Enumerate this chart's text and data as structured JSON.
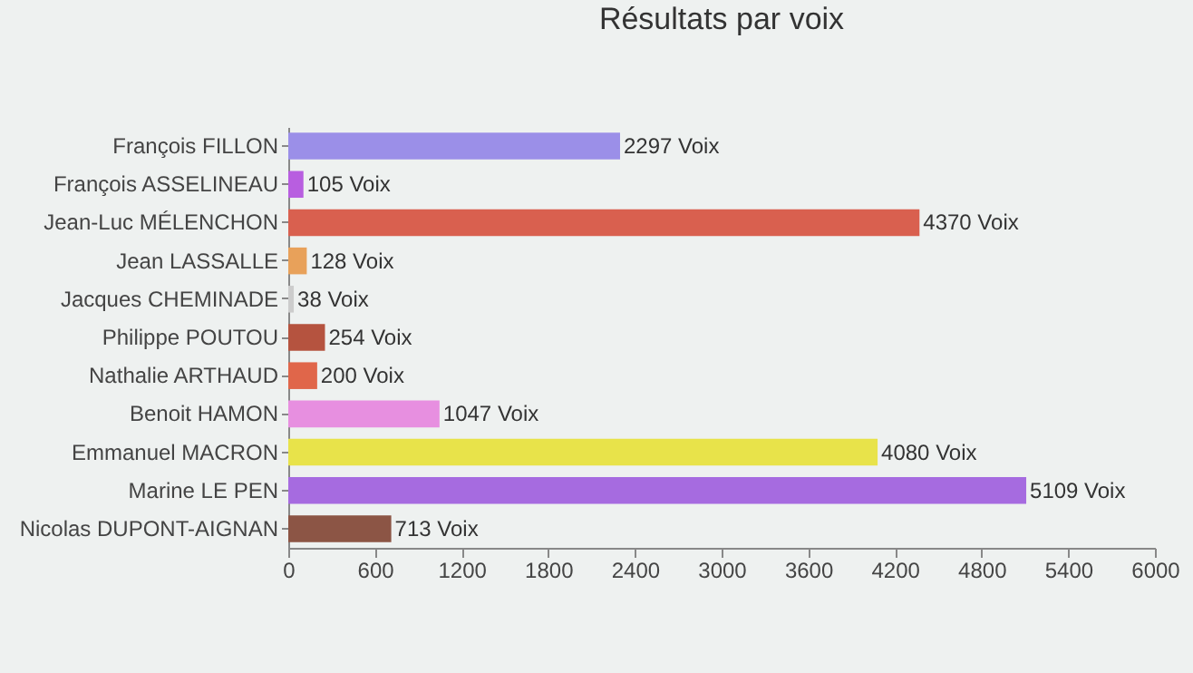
{
  "chart_data": {
    "type": "bar",
    "orientation": "horizontal",
    "title": "Résultats par voix",
    "categories": [
      "François FILLON",
      "François ASSELINEAU",
      "Jean-Luc MÉLENCHON",
      "Jean LASSALLE",
      "Jacques CHEMINADE",
      "Philippe POUTOU",
      "Nathalie ARTHAUD",
      "Benoit HAMON",
      "Emmanuel MACRON",
      "Marine LE PEN",
      "Nicolas DUPONT-AIGNAN"
    ],
    "values": [
      2297,
      105,
      4370,
      128,
      38,
      254,
      200,
      1047,
      4080,
      5109,
      713
    ],
    "colors": [
      "#9b8fe8",
      "#b85ee0",
      "#d9604f",
      "#e8a15a",
      "#cccccc",
      "#b5533f",
      "#e0664a",
      "#e78fe0",
      "#e8e34a",
      "#a66be0",
      "#8c5545"
    ],
    "value_labels": [
      "2297 Voix",
      "105 Voix",
      "4370 Voix",
      "128 Voix",
      "38 Voix",
      "254 Voix",
      "200 Voix",
      "1047 Voix",
      "4080 Voix",
      "5109 Voix",
      "713 Voix"
    ],
    "xlim": [
      0,
      6000
    ],
    "xticks": [
      0,
      600,
      1200,
      1800,
      2400,
      3000,
      3600,
      4200,
      4800,
      5400,
      6000
    ],
    "grid": false
  }
}
